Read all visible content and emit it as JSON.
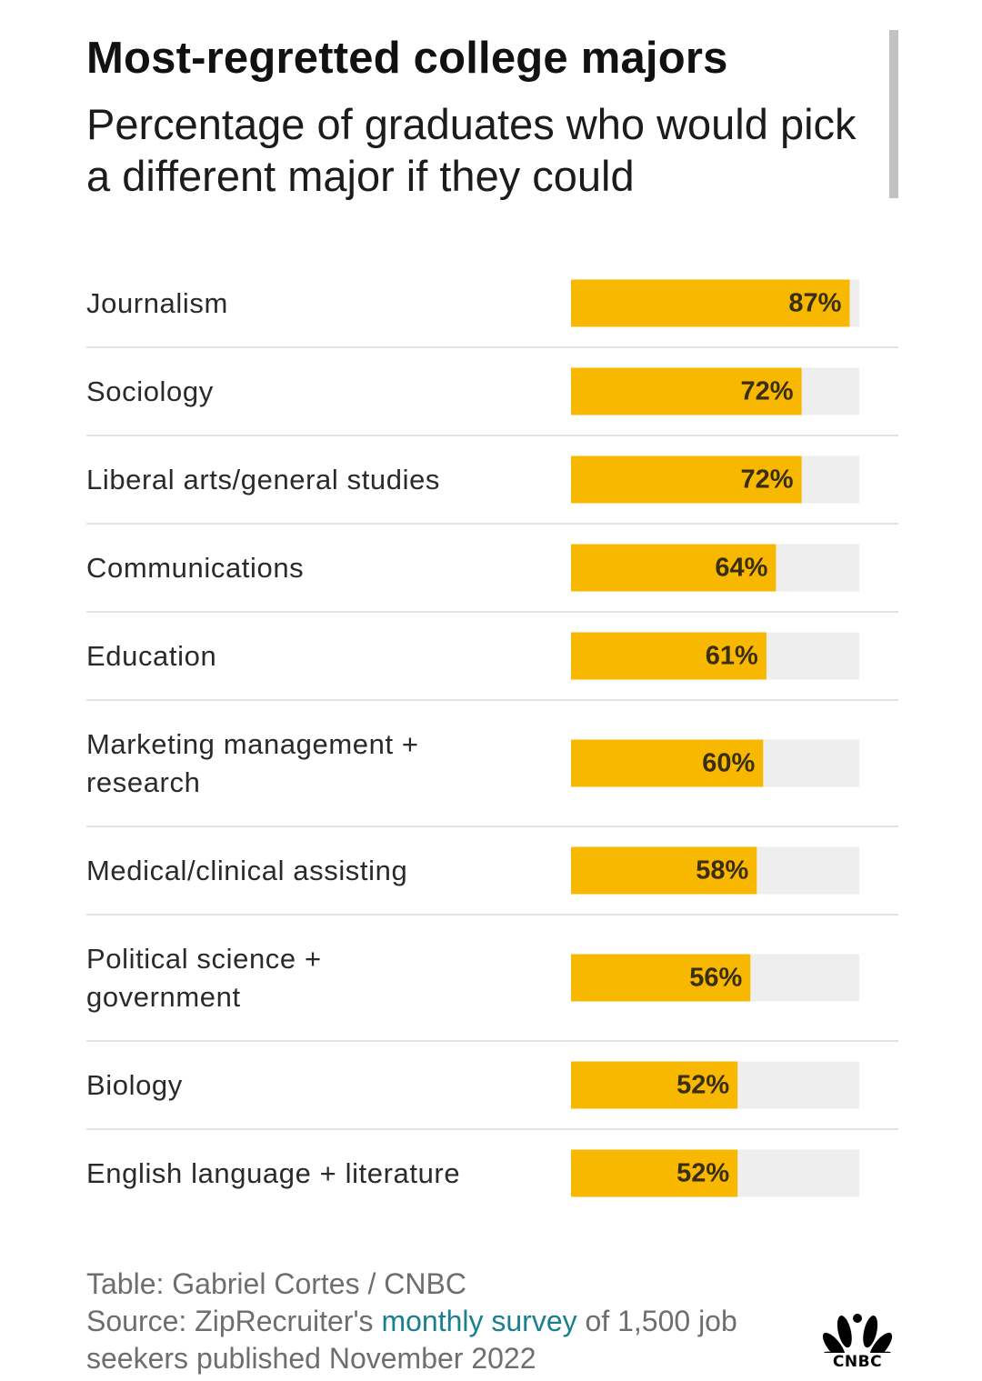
{
  "title": "Most-regretted college majors",
  "subtitle": "Percentage of graduates who would pick a different major if they could",
  "chart_data": {
    "type": "bar",
    "orientation": "horizontal",
    "categories": [
      [
        "Journalism"
      ],
      [
        "Sociology"
      ],
      [
        "Liberal arts/general studies"
      ],
      [
        "Communications"
      ],
      [
        "Education"
      ],
      [
        "Marketing management +",
        "research"
      ],
      [
        "Medical/clinical assisting"
      ],
      [
        "Political science +",
        "government"
      ],
      [
        "Biology"
      ],
      [
        "English language + literature"
      ]
    ],
    "values": [
      87,
      72,
      72,
      64,
      61,
      60,
      58,
      56,
      52,
      52
    ],
    "value_labels": [
      "87%",
      "72%",
      "72%",
      "64%",
      "61%",
      "60%",
      "58%",
      "56%",
      "52%",
      "52%"
    ],
    "xlim": [
      0,
      90
    ],
    "bar_color": "#f9b800",
    "track_color": "#eeeeee",
    "separator_color": "#e2e2e2"
  },
  "footer": {
    "line1": "Table: Gabriel Cortes / CNBC",
    "source_prefix": "Source: ZipRecruiter's ",
    "source_link": "monthly survey",
    "source_suffix": " of 1,500 job seekers published November 2022"
  },
  "logo": {
    "text": "CNBC",
    "icon": "cnbc-peacock-icon"
  },
  "colors": {
    "accent": "#f9b800",
    "link": "#1a7f8f",
    "muted": "#6e6e6e"
  }
}
